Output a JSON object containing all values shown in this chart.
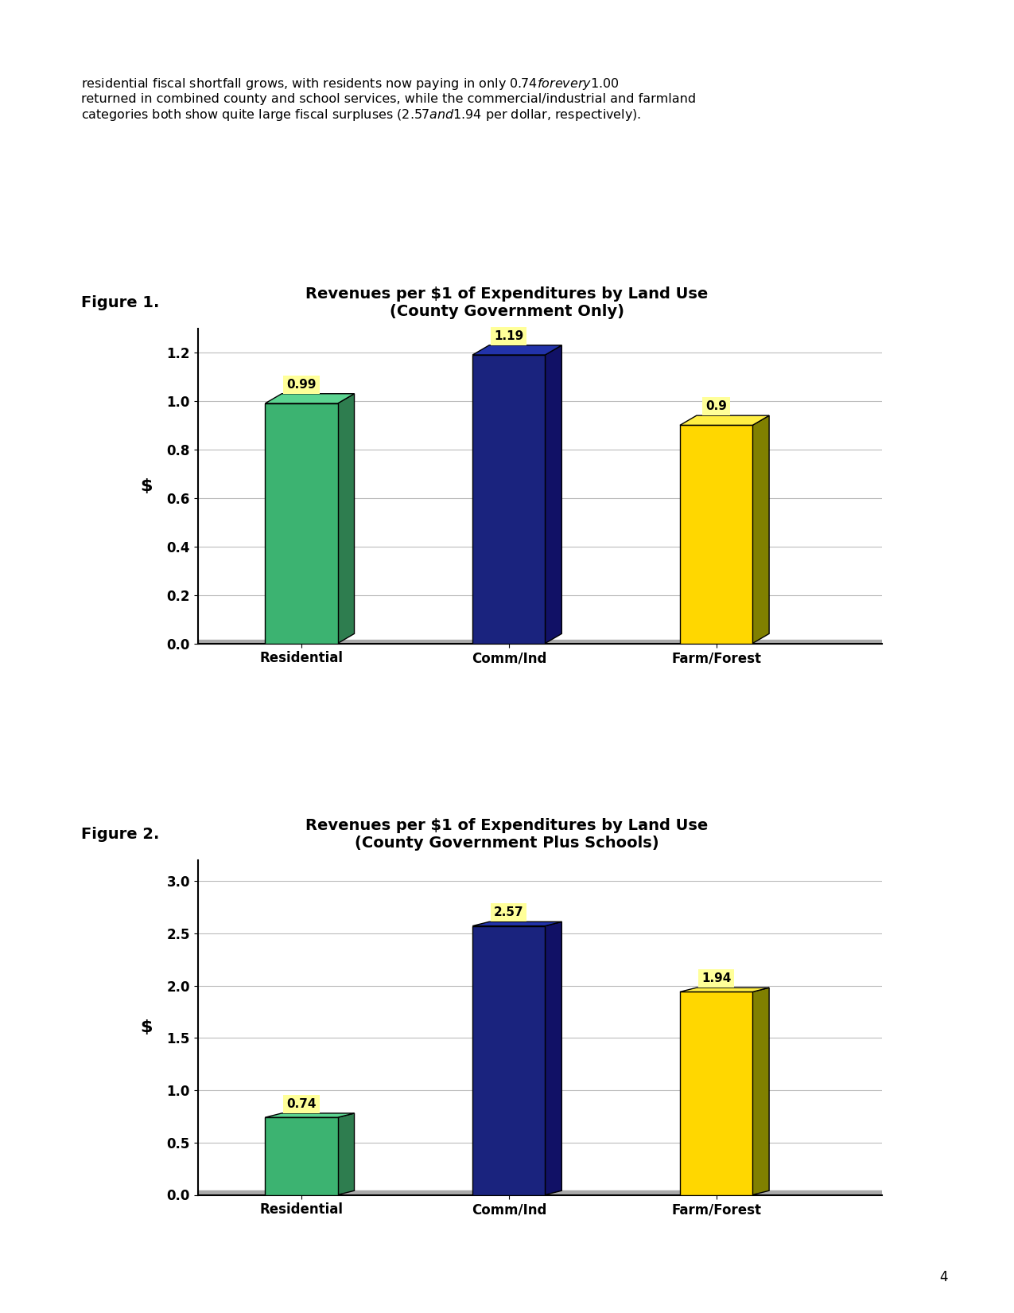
{
  "paragraph_text": "residential fiscal shortfall grows, with residents now paying in only $0.74 for every $1.00\nreturned in combined county and school services, while the commercial/industrial and farmland\ncategories both show quite large fiscal surpluses ($2.57 and $1.94 per dollar, respectively).",
  "fig1_label": "Figure 1.",
  "fig1_title_line1": "Revenues per $1 of Expenditures by Land Use",
  "fig1_title_line2": "(County Government Only)",
  "fig2_label": "Figure 2.",
  "fig2_title_line1": "Revenues per $1 of Expenditures by Land Use",
  "fig2_title_line2": "(County Government Plus Schools)",
  "categories": [
    "Residential",
    "Comm/Ind",
    "Farm/Forest"
  ],
  "fig1_values": [
    0.99,
    1.19,
    0.9
  ],
  "fig2_values": [
    0.74,
    2.57,
    1.94
  ],
  "bar_colors_front": [
    "#3cb371",
    "#1a237e",
    "#ffd700"
  ],
  "bar_colors_side": [
    "#2e7d4f",
    "#111166",
    "#808000"
  ],
  "bar_colors_top": [
    "#5cd491",
    "#2233aa",
    "#ffee44"
  ],
  "label_bg_color": "#ffff99",
  "ylabel": "$",
  "fig1_ylim": [
    0,
    1.3
  ],
  "fig1_yticks": [
    0,
    0.2,
    0.4,
    0.6,
    0.8,
    1.0,
    1.2
  ],
  "fig2_ylim": [
    0,
    3.2
  ],
  "fig2_yticks": [
    0,
    0.5,
    1.0,
    1.5,
    2.0,
    2.5,
    3.0
  ],
  "background_color": "#ffffff",
  "page_number": "4",
  "font_size_paragraph": 11.5,
  "font_size_figure_label": 14,
  "font_size_title": 14,
  "font_size_axis_tick": 12,
  "font_size_value_label": 11,
  "font_size_ylabel": 16
}
